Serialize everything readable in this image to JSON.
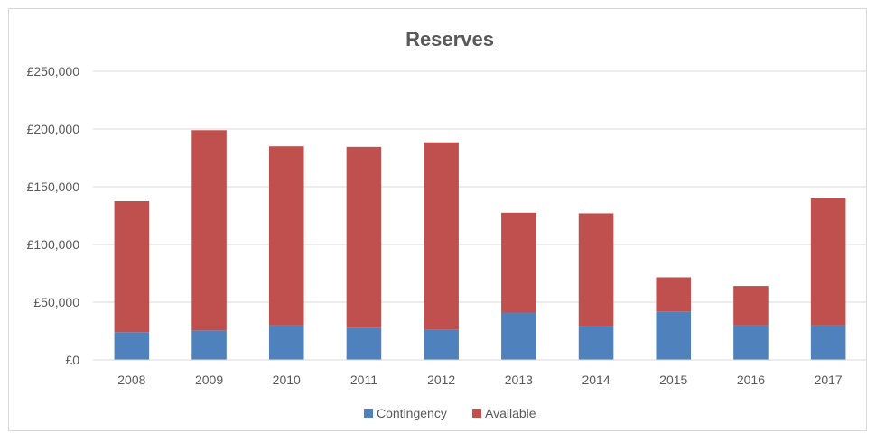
{
  "chart_data": {
    "type": "bar",
    "stacked": true,
    "title": "Reserves",
    "xlabel": "",
    "ylabel": "",
    "categories": [
      "2008",
      "2009",
      "2010",
      "2011",
      "2012",
      "2013",
      "2014",
      "2015",
      "2016",
      "2017"
    ],
    "series": [
      {
        "name": "Contingency",
        "color": "#4f81bd",
        "values": [
          24000,
          25500,
          30000,
          28000,
          26000,
          41000,
          29000,
          42000,
          30000,
          30000
        ]
      },
      {
        "name": "Available",
        "color": "#c0504d",
        "values": [
          113500,
          173500,
          155000,
          156500,
          162500,
          86500,
          98000,
          29500,
          34000,
          110000
        ]
      }
    ],
    "ylim": [
      0,
      250000
    ],
    "y_ticks": [
      0,
      50000,
      100000,
      150000,
      200000,
      250000
    ],
    "y_tick_labels": [
      "£0",
      "£50,000",
      "£100,000",
      "£150,000",
      "£200,000",
      "£250,000"
    ],
    "grid": true,
    "legend_position": "bottom"
  }
}
